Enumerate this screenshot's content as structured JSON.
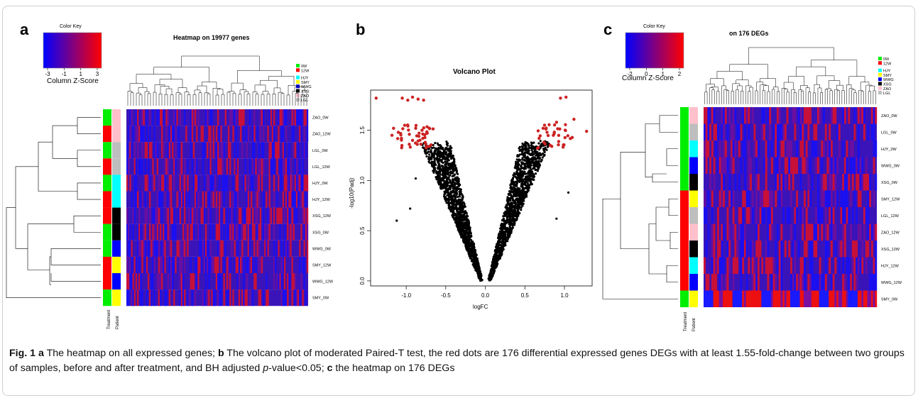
{
  "panels": {
    "a": {
      "letter": "a",
      "title": "Heatmap on 19977 genes",
      "color_key": {
        "title": "Color Key",
        "ticks": [
          "-3",
          "-1",
          "1",
          "3"
        ],
        "label": "Column Z-Score",
        "colors": [
          "#0000ff",
          "#ff0000"
        ]
      },
      "legend": [
        {
          "label": "0W",
          "color": "#00ee00"
        },
        {
          "label": "12W",
          "color": "#ff0000"
        },
        {
          "label": "HJY",
          "color": "#00ffff"
        },
        {
          "label": "SMY",
          "color": "#ffff00"
        },
        {
          "label": "WWG",
          "color": "#0000ff"
        },
        {
          "label": "XSG",
          "color": "#000000"
        },
        {
          "label": "ZAO",
          "color": "#ffc0cb"
        },
        {
          "label": "LGL",
          "color": "#bebebe"
        }
      ],
      "rows": [
        {
          "label": "ZAO_0W",
          "treatment": "#00ee00",
          "patient": "#ffc0cb"
        },
        {
          "label": "ZAO_12W",
          "treatment": "#ff0000",
          "patient": "#ffc0cb"
        },
        {
          "label": "LGL_0W",
          "treatment": "#00ee00",
          "patient": "#bebebe"
        },
        {
          "label": "LGL_12W",
          "treatment": "#ff0000",
          "patient": "#bebebe"
        },
        {
          "label": "HJY_0W",
          "treatment": "#00ee00",
          "patient": "#00ffff"
        },
        {
          "label": "HJY_12W",
          "treatment": "#ff0000",
          "patient": "#00ffff"
        },
        {
          "label": "XSG_12W",
          "treatment": "#ff0000",
          "patient": "#000000"
        },
        {
          "label": "XSG_0W",
          "treatment": "#00ee00",
          "patient": "#000000"
        },
        {
          "label": "WWG_0W",
          "treatment": "#00ee00",
          "patient": "#0000ff"
        },
        {
          "label": "SMY_12W",
          "treatment": "#ff0000",
          "patient": "#ffff00"
        },
        {
          "label": "WWG_12W",
          "treatment": "#ff0000",
          "patient": "#0000ff"
        },
        {
          "label": "SMY_0W",
          "treatment": "#00ee00",
          "patient": "#ffff00"
        }
      ],
      "side_labels": [
        "Treatment",
        "Patient"
      ]
    },
    "b": {
      "letter": "b",
      "chart_data": {
        "type": "scatter",
        "title": "Volcano Plot",
        "xlabel": "logFC",
        "ylabel": "-log10(Padj)",
        "xlim": [
          -1.45,
          1.35
        ],
        "ylim": [
          -0.05,
          1.9
        ],
        "x_ticks": [
          "-1.0",
          "-0.5",
          "0.0",
          "0.5",
          "1.0"
        ],
        "y_ticks": [
          "0.0",
          "0.5",
          "1.0",
          "1.5"
        ],
        "series": [
          {
            "color": "#000000",
            "description": "all genes"
          },
          {
            "color": "#cc2222",
            "description": "DEGs",
            "points": [
              [
                -1.38,
                1.82
              ],
              [
                -1.05,
                1.82
              ],
              [
                -0.98,
                1.8
              ],
              [
                -0.92,
                1.83
              ],
              [
                -0.85,
                1.81
              ],
              [
                -0.78,
                1.8
              ],
              [
                -1.16,
                1.52
              ],
              [
                -1.1,
                1.48
              ],
              [
                -1.02,
                1.55
              ],
              [
                -0.96,
                1.46
              ],
              [
                -0.92,
                1.4
              ],
              [
                -0.88,
                1.52
              ],
              [
                -0.84,
                1.44
              ],
              [
                -0.8,
                1.5
              ],
              [
                -0.76,
                1.38
              ],
              [
                -0.74,
                1.47
              ],
              [
                -0.71,
                1.34
              ],
              [
                -1.18,
                1.45
              ],
              [
                -1.06,
                1.42
              ],
              [
                -0.86,
                1.36
              ],
              [
                -0.79,
                1.42
              ],
              [
                0.68,
                1.42
              ],
              [
                0.74,
                1.38
              ],
              [
                0.78,
                1.48
              ],
              [
                0.82,
                1.35
              ],
              [
                0.86,
                1.45
              ],
              [
                0.73,
                1.52
              ],
              [
                0.9,
                1.58
              ],
              [
                0.66,
                1.32
              ],
              [
                0.95,
                1.82
              ],
              [
                1.02,
                1.83
              ],
              [
                1.12,
                1.61
              ],
              [
                1.28,
                1.49
              ],
              [
                0.84,
                1.34
              ]
            ]
          }
        ]
      }
    },
    "c": {
      "letter": "c",
      "title": "on 176 DEGs",
      "color_key": {
        "title": "Color Key",
        "ticks": [
          "-2",
          "0",
          "1",
          "2"
        ],
        "label": "Column Z-Score",
        "colors": [
          "#0000ff",
          "#ff0000"
        ]
      },
      "legend": [
        {
          "label": "0W",
          "color": "#00ee00"
        },
        {
          "label": "12W",
          "color": "#ff0000"
        },
        {
          "label": "HJY",
          "color": "#00ffff"
        },
        {
          "label": "SMY",
          "color": "#ffff00"
        },
        {
          "label": "WWG",
          "color": "#0000ff"
        },
        {
          "label": "XSG",
          "color": "#000000"
        },
        {
          "label": "ZAO",
          "color": "#ffc0cb"
        },
        {
          "label": "LGL",
          "color": "#bebebe"
        }
      ],
      "rows": [
        {
          "label": "ZAO_0W",
          "treatment": "#00ee00",
          "patient": "#ffc0cb"
        },
        {
          "label": "LGL_0W",
          "treatment": "#00ee00",
          "patient": "#bebebe"
        },
        {
          "label": "HJY_0W",
          "treatment": "#00ee00",
          "patient": "#00ffff"
        },
        {
          "label": "WWG_0W",
          "treatment": "#00ee00",
          "patient": "#0000ff"
        },
        {
          "label": "XSG_0W",
          "treatment": "#00ee00",
          "patient": "#000000"
        },
        {
          "label": "SMY_12W",
          "treatment": "#ff0000",
          "patient": "#ffff00"
        },
        {
          "label": "LGL_12W",
          "treatment": "#ff0000",
          "patient": "#bebebe"
        },
        {
          "label": "ZAO_12W",
          "treatment": "#ff0000",
          "patient": "#ffc0cb"
        },
        {
          "label": "XSG_12W",
          "treatment": "#ff0000",
          "patient": "#000000"
        },
        {
          "label": "HJY_12W",
          "treatment": "#ff0000",
          "patient": "#00ffff"
        },
        {
          "label": "WWG_12W",
          "treatment": "#ff0000",
          "patient": "#0000ff"
        },
        {
          "label": "SMY_0W",
          "treatment": "#00ee00",
          "patient": "#ffff00"
        }
      ],
      "side_labels": [
        "Treatment",
        "Patient"
      ]
    }
  },
  "caption": {
    "fig_label": "Fig. 1",
    "a_letter": "a",
    "a_text": " The heatmap on all expressed genes; ",
    "b_letter": "b",
    "b_text": " The volcano plot of moderated Paired-T test, the red dots are 176 differential expressed genes DEGs with at least 1.55-fold-change between two groups of samples, before and after treatment, and BH adjusted ",
    "p_italic": "p",
    "b_text2": "-value<0.05; ",
    "c_letter": "c",
    "c_text": " the heatmap on 176 DEGs"
  }
}
